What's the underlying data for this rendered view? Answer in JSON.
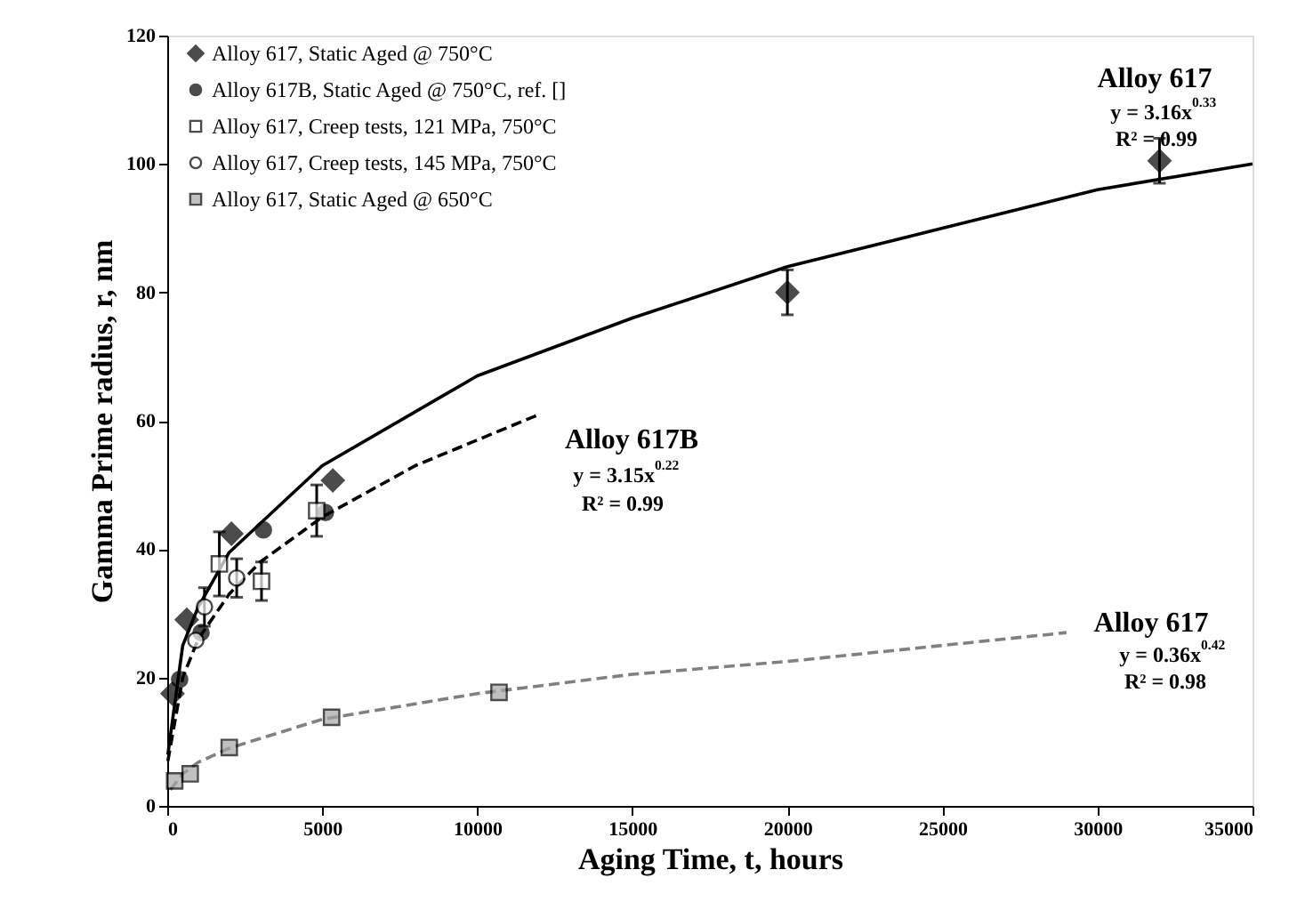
{
  "chart_data": {
    "type": "scatter",
    "xlabel": "Aging Time, t, hours",
    "ylabel": "Gamma Prime radius, r, nm",
    "xlim": [
      0,
      35000
    ],
    "xticks": [
      0,
      5000,
      10000,
      15000,
      20000,
      25000,
      30000,
      35000
    ],
    "ylim": [
      0,
      120
    ],
    "yticks": [
      0,
      20,
      40,
      60,
      80,
      100,
      120
    ],
    "grid": false,
    "legend": "top left",
    "series": [
      {
        "type": "line",
        "color": "#000000",
        "line_style": "solid",
        "marker": "none",
        "x": [
          20,
          500,
          1000,
          2000,
          5000,
          10000,
          15000,
          20000,
          25000,
          30000,
          35000
        ],
        "values": [
          8,
          25,
          31,
          39.5,
          53,
          67,
          76,
          84,
          90,
          96,
          100
        ]
      },
      {
        "type": "line",
        "color": "#000000",
        "line_style": "dashed",
        "marker": "none",
        "x": [
          20,
          500,
          1000,
          2000,
          3000,
          5000,
          8000,
          12000
        ],
        "values": [
          7,
          20,
          26,
          33,
          38,
          45,
          53,
          61
        ]
      },
      {
        "type": "line",
        "color": "#808080",
        "line_style": "dashed",
        "marker": "none",
        "x": [
          100,
          500,
          1000,
          2000,
          5000,
          10000,
          15000,
          20000,
          25000,
          29000
        ],
        "values": [
          2.5,
          5,
          6.8,
          9,
          13.5,
          17.5,
          20.5,
          22.5,
          25,
          27
        ]
      },
      {
        "name": "Alloy 617, Static Aged @ 750°C",
        "color": "#000000",
        "marker": "diamond",
        "x": [
          170,
          630,
          2070,
          5340,
          20000,
          32000
        ],
        "values": [
          17.5,
          29,
          42.4,
          50.7,
          80,
          100.5
        ],
        "errors": [
          null,
          null,
          null,
          null,
          3.5,
          3.5
        ]
      },
      {
        "name": "Alloy 617B, Static Aged @ 750°C, ref. []",
        "color": "#000000",
        "marker": "circle",
        "x": [
          400,
          1090,
          3100,
          5100
        ],
        "values": [
          19.7,
          27,
          43,
          45.7
        ]
      },
      {
        "name": "Alloy 617, Creep tests, 121 MPa, 750°C",
        "color": "#ffffff",
        "marker": "square",
        "x": [
          1680,
          3040,
          4820
        ],
        "values": [
          37.7,
          35,
          46
        ],
        "errors": [
          5,
          3,
          4
        ]
      },
      {
        "name": "Alloy 617, Creep tests, 145 MPa, 750°C",
        "color": "#ffffff",
        "marker": "circle",
        "x": [
          920,
          1200,
          2240
        ],
        "values": [
          25.8,
          31,
          35.5
        ],
        "errors": [
          null,
          3,
          3
        ]
      },
      {
        "name": "Alloy 617, Static Aged @ 650°C",
        "color": "#a6a6a6",
        "marker": "square",
        "x": [
          240,
          740,
          2000,
          5300,
          10700
        ],
        "values": [
          3.9,
          5,
          9.1,
          13.8,
          17.7
        ]
      }
    ],
    "annotations": [
      "Alloy 617",
      "y = 3.16x$^{0.33}$",
      "R² = 0.99",
      "Alloy 617B",
      "y = 3.15x$^{0.22}$",
      "R² = 0.99",
      "Alloy 617",
      "y = 0.36x$^{0.42}$",
      "R² = 0.98"
    ]
  }
}
